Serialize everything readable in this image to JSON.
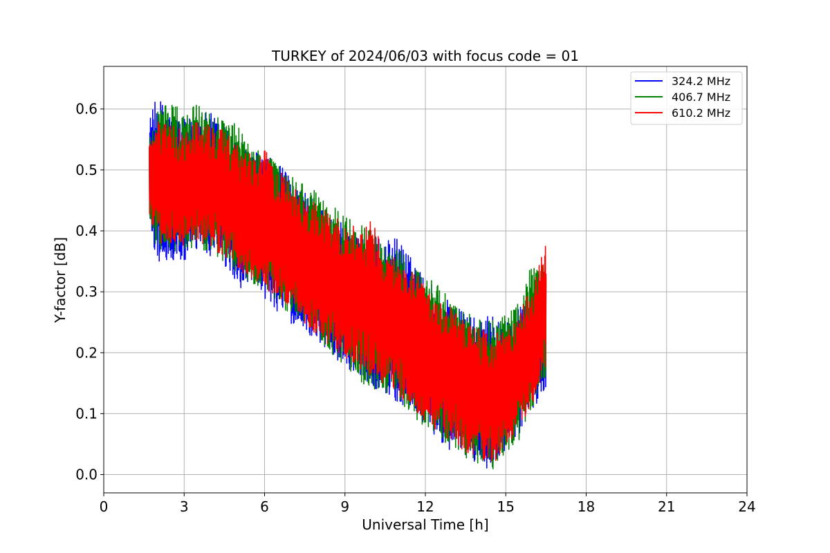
{
  "chart_data": {
    "type": "line",
    "title": "TURKEY of 2024/06/03 with focus code = 01",
    "xlabel": "Universal Time [h]",
    "ylabel": "Y-factor [dB]",
    "xlim": [
      0,
      24
    ],
    "ylim": [
      -0.03,
      0.67
    ],
    "xticks": [
      0,
      3,
      6,
      9,
      12,
      15,
      18,
      21,
      24
    ],
    "xtick_labels": [
      "0",
      "3",
      "6",
      "9",
      "12",
      "15",
      "18",
      "21",
      "24"
    ],
    "yticks": [
      0.0,
      0.1,
      0.2,
      0.3,
      0.4,
      0.5,
      0.6
    ],
    "ytick_labels": [
      "0.0",
      "0.1",
      "0.2",
      "0.3",
      "0.4",
      "0.5",
      "0.6"
    ],
    "grid": true,
    "legend_position": "top-right",
    "series": [
      {
        "name": "324.2 MHz",
        "color": "#0000ff",
        "x": [
          1.7,
          2.0,
          2.5,
          3.0,
          3.5,
          4.0,
          4.5,
          5.0,
          5.5,
          6.0,
          6.5,
          7.0,
          7.5,
          8.0,
          8.5,
          9.0,
          9.5,
          10.0,
          10.5,
          11.0,
          11.5,
          12.0,
          12.5,
          13.0,
          13.5,
          14.0,
          14.5,
          15.0,
          15.5,
          16.0,
          16.5
        ],
        "upper": [
          0.59,
          0.63,
          0.6,
          0.59,
          0.6,
          0.6,
          0.58,
          0.56,
          0.54,
          0.53,
          0.52,
          0.49,
          0.47,
          0.45,
          0.43,
          0.42,
          0.4,
          0.4,
          0.39,
          0.4,
          0.36,
          0.33,
          0.31,
          0.29,
          0.27,
          0.26,
          0.27,
          0.26,
          0.28,
          0.3,
          0.34
        ],
        "lower": [
          0.4,
          0.34,
          0.34,
          0.34,
          0.36,
          0.35,
          0.33,
          0.3,
          0.3,
          0.28,
          0.26,
          0.24,
          0.23,
          0.21,
          0.19,
          0.17,
          0.16,
          0.14,
          0.12,
          0.11,
          0.09,
          0.07,
          0.05,
          0.03,
          0.02,
          0.01,
          0.0,
          0.03,
          0.06,
          0.1,
          0.14
        ]
      },
      {
        "name": "406.7 MHz",
        "color": "#008000",
        "x": [
          1.7,
          2.0,
          2.5,
          3.0,
          3.5,
          4.0,
          4.5,
          5.0,
          5.5,
          6.0,
          6.5,
          7.0,
          7.5,
          8.0,
          8.5,
          9.0,
          9.5,
          10.0,
          10.5,
          11.0,
          11.5,
          12.0,
          12.5,
          13.0,
          13.5,
          14.0,
          14.5,
          15.0,
          15.5,
          16.0,
          16.5
        ],
        "upper": [
          0.56,
          0.62,
          0.62,
          0.6,
          0.62,
          0.61,
          0.59,
          0.58,
          0.56,
          0.53,
          0.52,
          0.5,
          0.48,
          0.47,
          0.45,
          0.43,
          0.42,
          0.41,
          0.38,
          0.38,
          0.35,
          0.33,
          0.32,
          0.29,
          0.28,
          0.27,
          0.26,
          0.27,
          0.29,
          0.36,
          0.35
        ],
        "lower": [
          0.41,
          0.36,
          0.36,
          0.36,
          0.36,
          0.36,
          0.34,
          0.32,
          0.31,
          0.29,
          0.28,
          0.25,
          0.24,
          0.22,
          0.19,
          0.17,
          0.15,
          0.13,
          0.13,
          0.11,
          0.09,
          0.07,
          0.05,
          0.04,
          0.02,
          0.01,
          0.0,
          0.03,
          0.05,
          0.1,
          0.15
        ]
      },
      {
        "name": "610.2 MHz",
        "color": "#ff0000",
        "x": [
          1.7,
          2.0,
          2.5,
          3.0,
          3.5,
          4.0,
          4.5,
          5.0,
          5.5,
          6.0,
          6.5,
          7.0,
          7.5,
          8.0,
          8.5,
          9.0,
          9.5,
          10.0,
          10.5,
          11.0,
          11.5,
          12.0,
          12.5,
          13.0,
          13.5,
          14.0,
          14.5,
          15.0,
          15.5,
          16.0,
          16.5
        ],
        "upper": [
          0.55,
          0.59,
          0.58,
          0.57,
          0.59,
          0.58,
          0.57,
          0.55,
          0.53,
          0.54,
          0.51,
          0.48,
          0.46,
          0.45,
          0.43,
          0.42,
          0.41,
          0.43,
          0.37,
          0.36,
          0.34,
          0.32,
          0.29,
          0.28,
          0.26,
          0.25,
          0.24,
          0.24,
          0.27,
          0.32,
          0.39
        ],
        "lower": [
          0.42,
          0.37,
          0.37,
          0.37,
          0.37,
          0.37,
          0.35,
          0.33,
          0.31,
          0.3,
          0.28,
          0.26,
          0.24,
          0.22,
          0.2,
          0.18,
          0.17,
          0.15,
          0.14,
          0.12,
          0.1,
          0.08,
          0.06,
          0.05,
          0.03,
          0.02,
          0.01,
          0.04,
          0.07,
          0.11,
          0.17
        ]
      }
    ]
  }
}
